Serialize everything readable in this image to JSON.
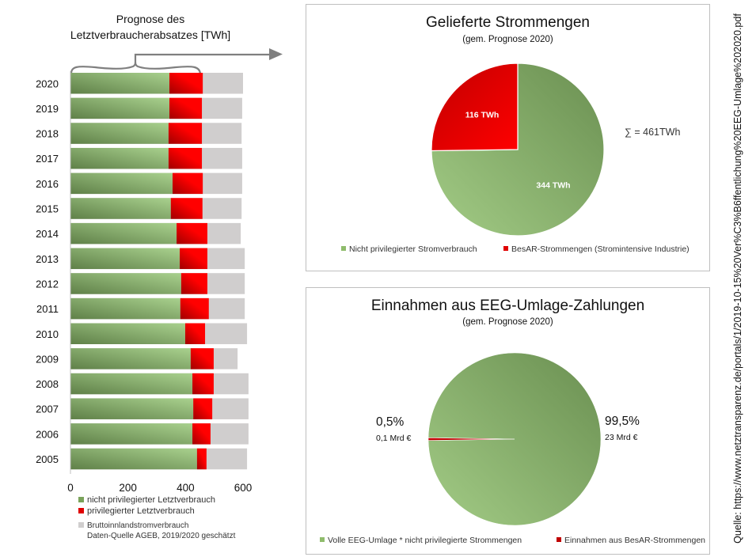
{
  "chart_data": [
    {
      "type": "bar",
      "orientation": "horizontal",
      "stacked": true,
      "title": "Prognose des Letztverbraucherabsatzes [TWh]",
      "categories": [
        "2020",
        "2019",
        "2018",
        "2017",
        "2016",
        "2015",
        "2014",
        "2013",
        "2012",
        "2011",
        "2010",
        "2009",
        "2008",
        "2007",
        "2006",
        "2005"
      ],
      "series": [
        {
          "name": "nicht privilegierter Letztverbrauch",
          "color": "#8fbc6c",
          "values": [
            344,
            344,
            341,
            341,
            355,
            349,
            369,
            380,
            385,
            382,
            399,
            418,
            424,
            427,
            424,
            440
          ]
        },
        {
          "name": "privilegierter Letztverbrauch",
          "color": "#e00000",
          "values": [
            116,
            113,
            116,
            116,
            105,
            110,
            107,
            96,
            91,
            99,
            69,
            80,
            74,
            66,
            63,
            33
          ]
        },
        {
          "name": "Bruttoinlandstromverbrauch",
          "color": "#d0cece",
          "total_values": [
            600,
            597,
            595,
            597,
            597,
            595,
            592,
            606,
            606,
            606,
            614,
            581,
            619,
            619,
            619,
            614
          ]
        }
      ],
      "xlim": [
        0,
        600
      ],
      "xticks": [
        "0",
        "200",
        "400",
        "600"
      ],
      "legend": "bottom",
      "legend_note": "Daten-Quelle AGEB, 2019/2020 geschätzt"
    },
    {
      "type": "pie",
      "title": "Gelieferte  Strommengen",
      "subtitle": "(gem. Prognose 2020)",
      "slices": [
        {
          "name": "Nicht privilegierter Stromverbrauch",
          "value": 344,
          "label": "344 TWh",
          "color": "#8fbc6c"
        },
        {
          "name": "BesAR-Strommengen (Stromintensive Industrie)",
          "value": 116,
          "label": "116 TWh",
          "color": "#e00000"
        }
      ],
      "annotation": "∑ = 461TWh",
      "legend": "bottom"
    },
    {
      "type": "pie",
      "title": "Einnahmen  aus EEG-Umlage-Zahlungen",
      "subtitle": "(gem. Prognose 2020)",
      "slices": [
        {
          "name": "Volle EEG-Umlage * nicht privilegierte Strommengen",
          "value": 99.5,
          "label_pct": "99,5%",
          "label_value": "23 Mrd €",
          "color": "#8fbc6c"
        },
        {
          "name": "Einnahmen aus BesAR-Strommengen",
          "value": 0.5,
          "label_pct": "0,5%",
          "label_value": "0,1 Mrd €",
          "color": "#c00000"
        }
      ],
      "legend": "bottom"
    }
  ],
  "bar_chart": {
    "title_line1": "Prognose des",
    "title_line2": "Letztverbraucherabsatzes [TWh]",
    "legend": [
      {
        "label": "nicht privilegierter Letztverbrauch",
        "color": "#7aa35a"
      },
      {
        "label": "privilegierter Letztverbrauch",
        "color": "#e00000"
      },
      {
        "label": "Bruttoinnlandstromverbrauch",
        "color": "#d0cece"
      }
    ],
    "legend_note": "Daten-Quelle AGEB, 2019/2020 geschätzt"
  },
  "pie_top": {
    "title": "Gelieferte  Strommengen",
    "subtitle": "(gem. Prognose 2020)",
    "sum_label": "∑ = 461TWh",
    "legend": [
      {
        "label": "Nicht privilegierter Stromverbrauch",
        "color": "#8fbc6c"
      },
      {
        "label": "BesAR-Strommengen (Stromintensive Industrie)",
        "color": "#e00000"
      }
    ]
  },
  "pie_bottom": {
    "title": "Einnahmen  aus EEG-Umlage-Zahlungen",
    "subtitle": "(gem. Prognose 2020)",
    "legend": [
      {
        "label": "Volle EEG-Umlage * nicht privilegierte Strommengen",
        "color": "#8fbc6c"
      },
      {
        "label": "Einnahmen aus BesAR-Strommengen",
        "color": "#c00000"
      }
    ]
  },
  "source": "Quelle: https://www.netztransparenz.de/portals/1/2019-10-15%20Ver%C3%B6ffentlichung%20EEG-Umlage%202020.pdf"
}
